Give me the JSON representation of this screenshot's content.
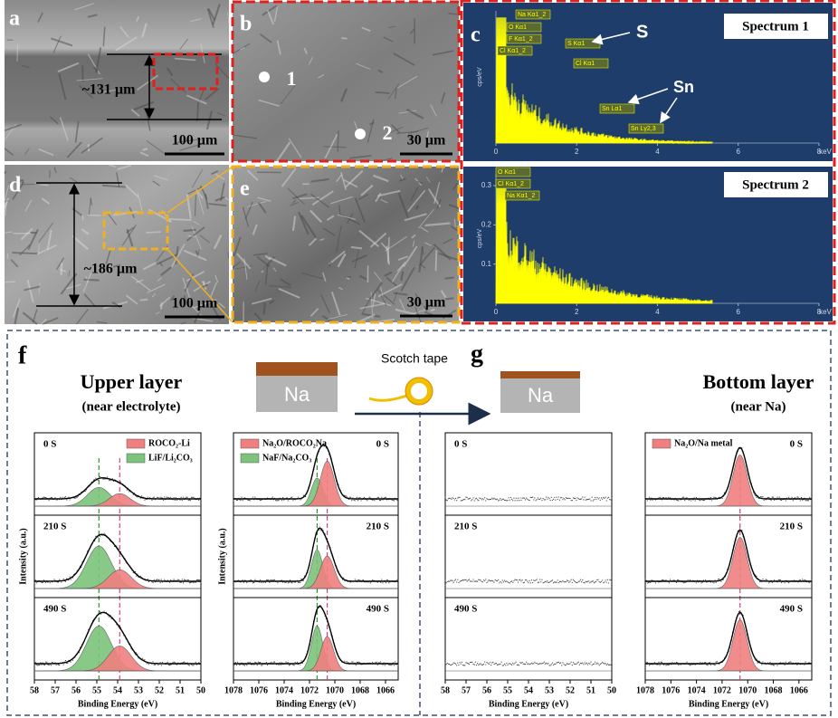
{
  "panels": {
    "a": {
      "label": "a",
      "thickness": "~131 µm",
      "scale": "100 µm"
    },
    "b": {
      "label": "b",
      "points": [
        "1",
        "2"
      ],
      "scale": "30 µm"
    },
    "c": {
      "label": "c",
      "title": "Spectrum  1",
      "annotations": [
        "S",
        "Sn"
      ],
      "peak_labels": [
        "Na Kα1_2",
        "O Kα1",
        "F Kα1_2",
        "Cl Kα1_2",
        "S Kα1",
        "Cl Kα1",
        "Sn Lα1",
        "Sn Lγ2,3"
      ],
      "ylabel": "cps/eV",
      "xlim": [
        0,
        8
      ],
      "xticks": [
        0,
        2,
        4,
        6,
        8
      ],
      "xunit": "keV"
    },
    "d": {
      "label": "d",
      "thickness": "~186 µm",
      "scale": "100 µm"
    },
    "e": {
      "label": "e",
      "scale": "30 µm"
    },
    "spectrum2": {
      "title": "Spectrum  2",
      "peak_labels": [
        "O Kα1",
        "Cl Kα1_2",
        "Na Kα1_2"
      ],
      "ylabel": "cps/eV",
      "ylim": [
        0,
        0.33
      ],
      "yticks": [
        0.1,
        0.2,
        0.3
      ],
      "xlim": [
        0,
        8
      ],
      "xticks": [
        0,
        2,
        4,
        6,
        8
      ],
      "xunit": "keV"
    }
  },
  "xps": {
    "f": {
      "label": "f",
      "title": "Upper layer",
      "subtitle": "(near electrolyte)"
    },
    "g": {
      "label": "g",
      "title": "Bottom layer",
      "subtitle": "(near Na)"
    },
    "schematic": {
      "left": "Na",
      "right": "Na",
      "tape": "Scotch tape"
    },
    "plots": [
      {
        "xlim": [
          58,
          50
        ],
        "xticks": [
          58,
          57,
          56,
          55,
          54,
          53,
          52,
          51,
          50
        ],
        "xlabel": "Binding Energy (eV)",
        "ylabel": "Intensity (a.u.)",
        "legend": [
          {
            "name": "ROCO₂-Li",
            "color": "#f08080"
          },
          {
            "name": "LiF/Li₂CO₃",
            "color": "#7cc47c"
          }
        ],
        "rows": [
          {
            "label": "0 S",
            "peaks": [
              {
                "component": 1,
                "center": 54.9,
                "height": 0.3,
                "width": 0.55
              },
              {
                "component": 0,
                "center": 53.9,
                "height": 0.2,
                "width": 0.5
              }
            ]
          },
          {
            "label": "210 S",
            "peaks": [
              {
                "component": 1,
                "center": 54.9,
                "height": 0.68,
                "width": 0.6
              },
              {
                "component": 0,
                "center": 53.9,
                "height": 0.3,
                "width": 0.55
              }
            ]
          },
          {
            "label": "490 S",
            "peaks": [
              {
                "component": 1,
                "center": 54.9,
                "height": 0.72,
                "width": 0.6
              },
              {
                "component": 0,
                "center": 53.9,
                "height": 0.4,
                "width": 0.55
              }
            ]
          }
        ]
      },
      {
        "xlim": [
          1078,
          1065
        ],
        "xticks": [
          1078,
          1076,
          1074,
          1072,
          1070,
          1068,
          1066
        ],
        "xlabel": "Binding Energy (eV)",
        "ylabel": "Intensity (a.u.)",
        "legend": [
          {
            "name": "Na₂O/ROCO₂Na",
            "color": "#f08080"
          },
          {
            "name": "NaF/Na₂CO₃",
            "color": "#7cc47c"
          }
        ],
        "rows": [
          {
            "label": "0 S",
            "peaks": [
              {
                "component": 1,
                "center": 1071.4,
                "height": 0.45,
                "width": 0.45
              },
              {
                "component": 0,
                "center": 1070.6,
                "height": 0.72,
                "width": 0.55
              }
            ]
          },
          {
            "label": "210 S",
            "peaks": [
              {
                "component": 1,
                "center": 1071.4,
                "height": 0.62,
                "width": 0.45
              },
              {
                "component": 0,
                "center": 1070.6,
                "height": 0.52,
                "width": 0.55
              }
            ]
          },
          {
            "label": "490 S",
            "peaks": [
              {
                "component": 1,
                "center": 1071.4,
                "height": 0.72,
                "width": 0.45
              },
              {
                "component": 0,
                "center": 1070.6,
                "height": 0.55,
                "width": 0.5
              }
            ]
          }
        ]
      },
      {
        "xlim": [
          58,
          50
        ],
        "xticks": [
          58,
          57,
          56,
          55,
          54,
          53,
          52,
          51,
          50
        ],
        "xlabel": "Binding Energy (eV)",
        "legend": [],
        "rows": [
          {
            "label": "0 S",
            "peaks": []
          },
          {
            "label": "210 S",
            "peaks": []
          },
          {
            "label": "490 S",
            "peaks": []
          }
        ]
      },
      {
        "xlim": [
          1078,
          1065
        ],
        "xticks": [
          1078,
          1076,
          1074,
          1072,
          1070,
          1068,
          1066
        ],
        "xlabel": "Binding Energy (eV)",
        "legend": [
          {
            "name": "Na₂O/Na metal",
            "color": "#f08080"
          }
        ],
        "rows": [
          {
            "label": "0 S",
            "peaks": [
              {
                "component": 0,
                "center": 1070.6,
                "height": 0.82,
                "width": 0.55
              }
            ]
          },
          {
            "label": "210 S",
            "peaks": [
              {
                "component": 0,
                "center": 1070.6,
                "height": 0.82,
                "width": 0.55
              }
            ]
          },
          {
            "label": "490 S",
            "peaks": [
              {
                "component": 0,
                "center": 1070.6,
                "height": 0.82,
                "width": 0.55
              }
            ]
          }
        ]
      }
    ]
  }
}
